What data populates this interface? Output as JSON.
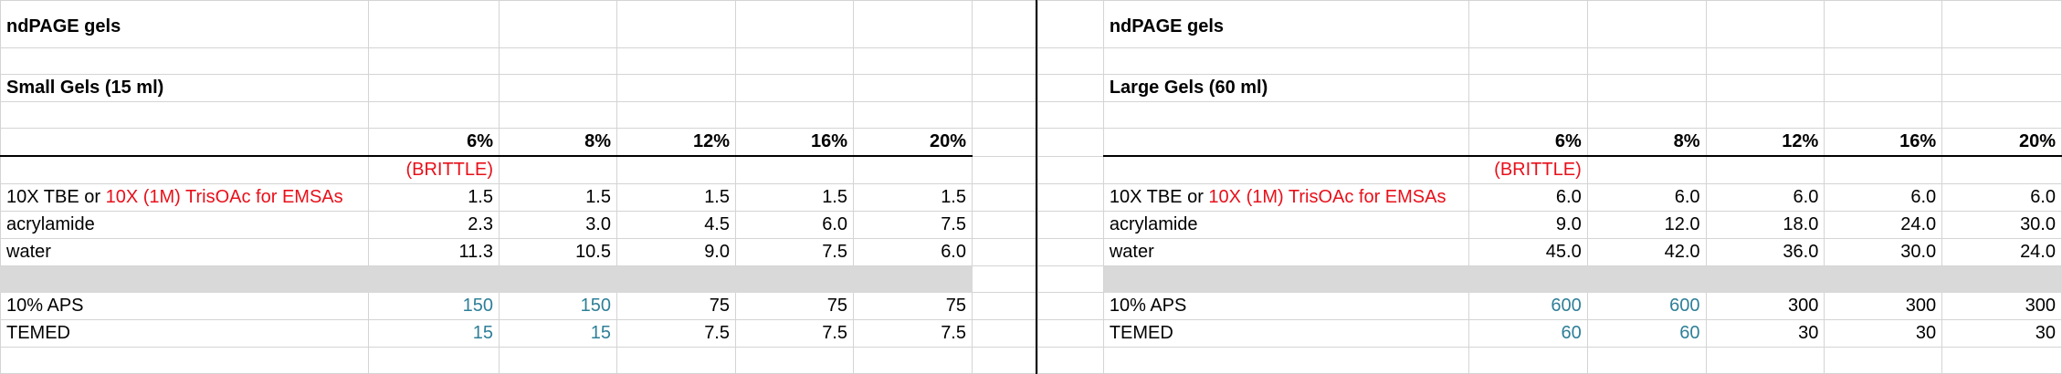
{
  "left": {
    "title": "ndPAGE gels",
    "subtitle": "Small Gels (15 ml)",
    "percentages": [
      "6%",
      "8%",
      "12%",
      "16%",
      "20%"
    ],
    "note": "(BRITTLE)",
    "rows": {
      "buffer": {
        "label_black": "10X TBE or ",
        "label_red": "10X (1M) TrisOAc for EMSAs",
        "values": [
          "1.5",
          "1.5",
          "1.5",
          "1.5",
          "1.5"
        ]
      },
      "acrylamide": {
        "label": "acrylamide",
        "values": [
          "2.3",
          "3.0",
          "4.5",
          "6.0",
          "7.5"
        ]
      },
      "water": {
        "label": "water",
        "values": [
          "11.3",
          "10.5",
          "9.0",
          "7.5",
          "6.0"
        ]
      },
      "aps": {
        "label": "10% APS",
        "values": [
          "150",
          "150",
          "75",
          "75",
          "75"
        ]
      },
      "temed": {
        "label": "TEMED",
        "values": [
          "15",
          "15",
          "7.5",
          "7.5",
          "7.5"
        ]
      }
    }
  },
  "right": {
    "title": "ndPAGE gels",
    "subtitle": "Large Gels (60 ml)",
    "percentages": [
      "6%",
      "8%",
      "12%",
      "16%",
      "20%"
    ],
    "note": "(BRITTLE)",
    "rows": {
      "buffer": {
        "label_black": "10X TBE or ",
        "label_red": "10X (1M) TrisOAc for EMSAs",
        "values": [
          "6.0",
          "6.0",
          "6.0",
          "6.0",
          "6.0"
        ]
      },
      "acrylamide": {
        "label": "acrylamide",
        "values": [
          "9.0",
          "12.0",
          "18.0",
          "24.0",
          "30.0"
        ]
      },
      "water": {
        "label": "water",
        "values": [
          "45.0",
          "42.0",
          "36.0",
          "30.0",
          "24.0"
        ]
      },
      "aps": {
        "label": "10% APS",
        "values": [
          "600",
          "600",
          "300",
          "300",
          "300"
        ]
      },
      "temed": {
        "label": "TEMED",
        "values": [
          "60",
          "60",
          "30",
          "30",
          "30"
        ]
      }
    }
  },
  "colors": {
    "red": "#e8101a",
    "teal": "#2e7f98",
    "gray_fill": "#d9d9d9",
    "gridline": "#d4d4d4"
  }
}
